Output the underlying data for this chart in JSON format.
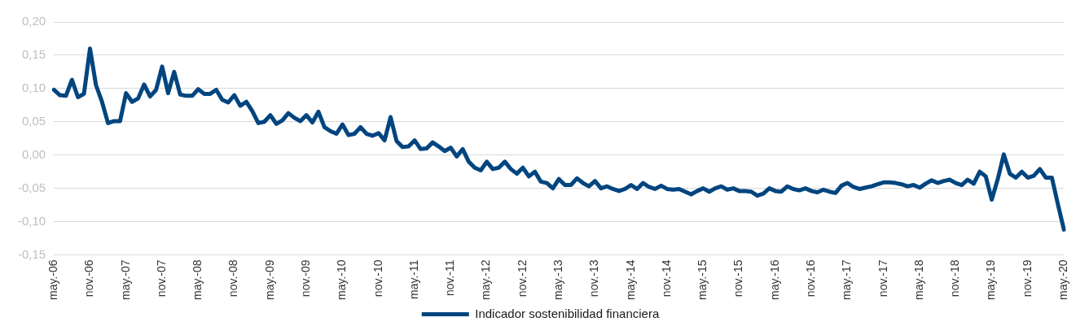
{
  "chart_data": {
    "type": "line",
    "categories": [
      "may.-06",
      null,
      null,
      null,
      null,
      null,
      "nov.-06",
      null,
      null,
      null,
      null,
      null,
      "may.-07",
      null,
      null,
      null,
      null,
      null,
      "nov.-07",
      null,
      null,
      null,
      null,
      null,
      "may.-08",
      null,
      null,
      null,
      null,
      null,
      "nov.-08",
      null,
      null,
      null,
      null,
      null,
      "may.-09",
      null,
      null,
      null,
      null,
      null,
      "nov.-09",
      null,
      null,
      null,
      null,
      null,
      "may.-10",
      null,
      null,
      null,
      null,
      null,
      "nov.-10",
      null,
      null,
      null,
      null,
      null,
      "may.-11",
      null,
      null,
      null,
      null,
      null,
      "nov.-11",
      null,
      null,
      null,
      null,
      null,
      "may.-12",
      null,
      null,
      null,
      null,
      null,
      "nov.-12",
      null,
      null,
      null,
      null,
      null,
      "may.-13",
      null,
      null,
      null,
      null,
      null,
      "nov.-13",
      null,
      null,
      null,
      null,
      null,
      "may.-14",
      null,
      null,
      null,
      null,
      null,
      "nov.-14",
      null,
      null,
      null,
      null,
      null,
      "may.-15",
      null,
      null,
      null,
      null,
      null,
      "nov.-15",
      null,
      null,
      null,
      null,
      null,
      "may.-16",
      null,
      null,
      null,
      null,
      null,
      "nov.-16",
      null,
      null,
      null,
      null,
      null,
      "may.-17",
      null,
      null,
      null,
      null,
      null,
      "nov.-17",
      null,
      null,
      null,
      null,
      null,
      "may.-18",
      null,
      null,
      null,
      null,
      null,
      "nov.-18",
      null,
      null,
      null,
      null,
      null,
      "may.-19",
      null,
      null,
      null,
      null,
      null,
      "nov.-19",
      null,
      null,
      null,
      null,
      null,
      "may.-20"
    ],
    "series": [
      {
        "name": "Indicador sostenibilidad financiera",
        "color": "#00457f",
        "values": [
          0.098,
          0.09,
          0.089,
          0.113,
          0.087,
          0.092,
          0.16,
          0.105,
          0.08,
          0.048,
          0.051,
          0.051,
          0.093,
          0.08,
          0.085,
          0.106,
          0.088,
          0.098,
          0.133,
          0.093,
          0.125,
          0.091,
          0.089,
          0.089,
          0.099,
          0.092,
          0.092,
          0.098,
          0.083,
          0.079,
          0.09,
          0.074,
          0.08,
          0.066,
          0.048,
          0.05,
          0.06,
          0.047,
          0.052,
          0.063,
          0.056,
          0.051,
          0.06,
          0.049,
          0.065,
          0.042,
          0.036,
          0.032,
          0.046,
          0.03,
          0.032,
          0.042,
          0.032,
          0.029,
          0.033,
          0.022,
          0.057,
          0.021,
          0.012,
          0.013,
          0.022,
          0.009,
          0.01,
          0.019,
          0.013,
          0.006,
          0.011,
          -0.002,
          0.009,
          -0.01,
          -0.019,
          -0.023,
          -0.01,
          -0.021,
          -0.019,
          -0.01,
          -0.021,
          -0.028,
          -0.019,
          -0.032,
          -0.025,
          -0.04,
          -0.042,
          -0.05,
          -0.036,
          -0.045,
          -0.045,
          -0.035,
          -0.042,
          -0.047,
          -0.039,
          -0.05,
          -0.047,
          -0.051,
          -0.054,
          -0.051,
          -0.045,
          -0.051,
          -0.042,
          -0.048,
          -0.051,
          -0.046,
          -0.051,
          -0.052,
          -0.051,
          -0.055,
          -0.059,
          -0.054,
          -0.05,
          -0.055,
          -0.05,
          -0.047,
          -0.052,
          -0.05,
          -0.054,
          -0.054,
          -0.055,
          -0.061,
          -0.058,
          -0.05,
          -0.054,
          -0.055,
          -0.047,
          -0.051,
          -0.053,
          -0.05,
          -0.054,
          -0.056,
          -0.052,
          -0.055,
          -0.057,
          -0.046,
          -0.042,
          -0.048,
          -0.051,
          -0.049,
          -0.047,
          -0.044,
          -0.041,
          -0.041,
          -0.042,
          -0.044,
          -0.047,
          -0.045,
          -0.049,
          -0.043,
          -0.038,
          -0.042,
          -0.039,
          -0.037,
          -0.042,
          -0.045,
          -0.037,
          -0.043,
          -0.025,
          -0.032,
          -0.067,
          -0.036,
          0.001,
          -0.028,
          -0.034,
          -0.025,
          -0.034,
          -0.031,
          -0.021,
          -0.034,
          -0.034,
          -0.074,
          -0.112
        ]
      }
    ],
    "ylim": [
      -0.15,
      0.2
    ],
    "yticks": [
      {
        "value": -0.15,
        "label": "-0,15"
      },
      {
        "value": -0.1,
        "label": "-0,10"
      },
      {
        "value": -0.05,
        "label": "-0,05"
      },
      {
        "value": 0,
        "label": "0,00"
      },
      {
        "value": 0.05,
        "label": "0,05"
      },
      {
        "value": 0.1,
        "label": "0,10"
      },
      {
        "value": 0.15,
        "label": "0,15"
      },
      {
        "value": 0.2,
        "label": "0,20"
      }
    ],
    "grid": "y",
    "legend": "bottom",
    "marker": "none",
    "line_style": "solid"
  }
}
